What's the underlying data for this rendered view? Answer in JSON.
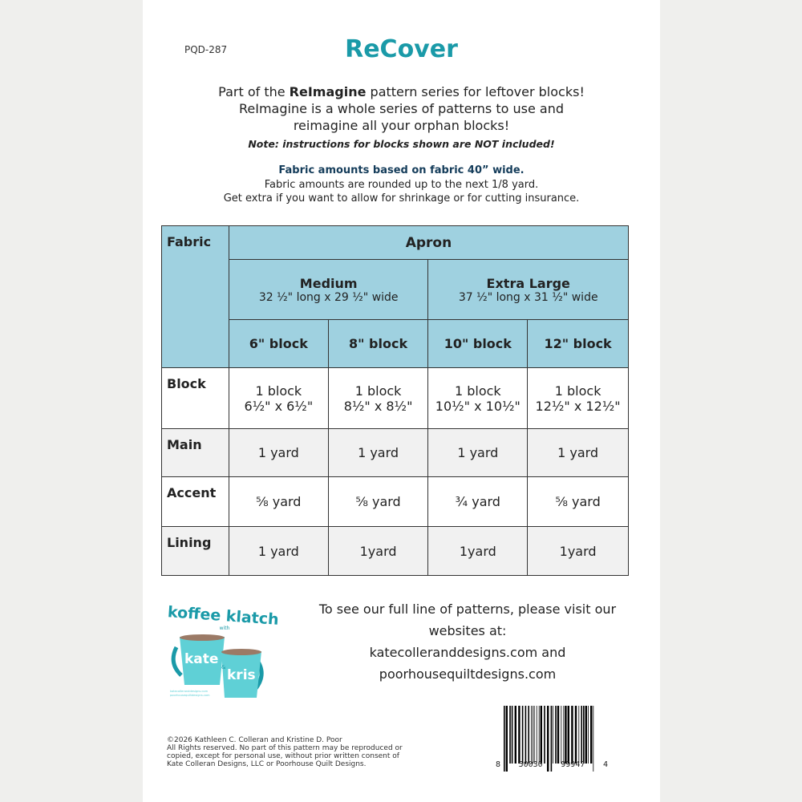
{
  "code": "PQD-287",
  "title": "ReCover",
  "intro": {
    "pre": "Part of the ",
    "bold": "ReImagine",
    "post": " pattern series for leftover blocks!",
    "line2": "ReImagine is a whole series of patterns to use and",
    "line3": "reimagine all your orphan blocks!"
  },
  "note": "Note: instructions for blocks shown are NOT included!",
  "fabric_heading": "Fabric amounts based on fabric 40” wide.",
  "fabric_line1": "Fabric amounts are rounded up to the next 1/8 yard.",
  "fabric_line2": "Get extra if you want to allow for shrinkage or for cutting insurance.",
  "colors": {
    "accent": "#1a9aa8",
    "header": "#9fd1e0"
  },
  "table": {
    "fabric_label": "Fabric",
    "apron": "Apron",
    "sizes": [
      {
        "name": "Medium",
        "dims": "32 ½\" long x 29 ½\" wide"
      },
      {
        "name": "Extra Large",
        "dims": "37 ½\" long x 31 ½\" wide"
      }
    ],
    "blocks": [
      "6\" block",
      "8\" block",
      "10\" block",
      "12\" block"
    ],
    "rows": [
      {
        "label": "Block",
        "cells": [
          [
            "1 block",
            "6½\" x 6½\""
          ],
          [
            "1 block",
            "8½\" x 8½\""
          ],
          [
            "1 block",
            "10½\" x 10½\""
          ],
          [
            "1 block",
            "12½\" x 12½\""
          ]
        ]
      },
      {
        "label": "Main",
        "cells": [
          [
            "1 yard"
          ],
          [
            "1 yard"
          ],
          [
            "1 yard"
          ],
          [
            "1 yard"
          ]
        ]
      },
      {
        "label": "Accent",
        "cells": [
          [
            "⅝ yard"
          ],
          [
            "⅝ yard"
          ],
          [
            "¾ yard"
          ],
          [
            "⅝ yard"
          ]
        ]
      },
      {
        "label": "Lining",
        "cells": [
          [
            "1 yard"
          ],
          [
            "1yard"
          ],
          [
            "1yard"
          ],
          [
            "1yard"
          ]
        ]
      }
    ]
  },
  "logo": {
    "top": "koffee klatch",
    "with": "with",
    "name1": "kate",
    "amp": "&",
    "name2": "kris",
    "url1": "katecolleranddesigns.com",
    "url2": "poorhousequiltdesigns.com"
  },
  "visit": [
    "To see our full line of patterns, please visit our",
    "websites at:",
    "katecolleranddesigns.com and",
    "poorhousequiltdesigns.com"
  ],
  "copyright": [
    "©2026 Kathleen C. Colleran and Kristine D. Poor",
    "All Rights reserved. No part of this pattern may be reproduced or",
    "copied, except for personal use,  without prior written consent of",
    "Kate Colleran Designs, LLC or Poorhouse Quilt Designs."
  ],
  "barcode_digits": [
    "8",
    "50030",
    "99947",
    "4"
  ]
}
